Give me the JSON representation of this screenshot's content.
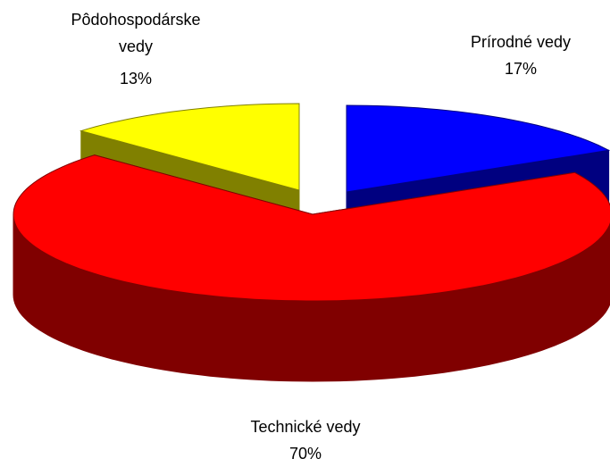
{
  "chart_data": {
    "type": "pie",
    "categories": [
      "Prírodné vedy",
      "Technické vedy",
      "Pôdohospodárske vedy"
    ],
    "values": [
      17,
      70,
      13
    ],
    "value_labels": [
      "17%",
      "70%",
      "13%"
    ],
    "colors": [
      "#0000ff",
      "#ff0000",
      "#ffff00"
    ],
    "three_d": true
  }
}
